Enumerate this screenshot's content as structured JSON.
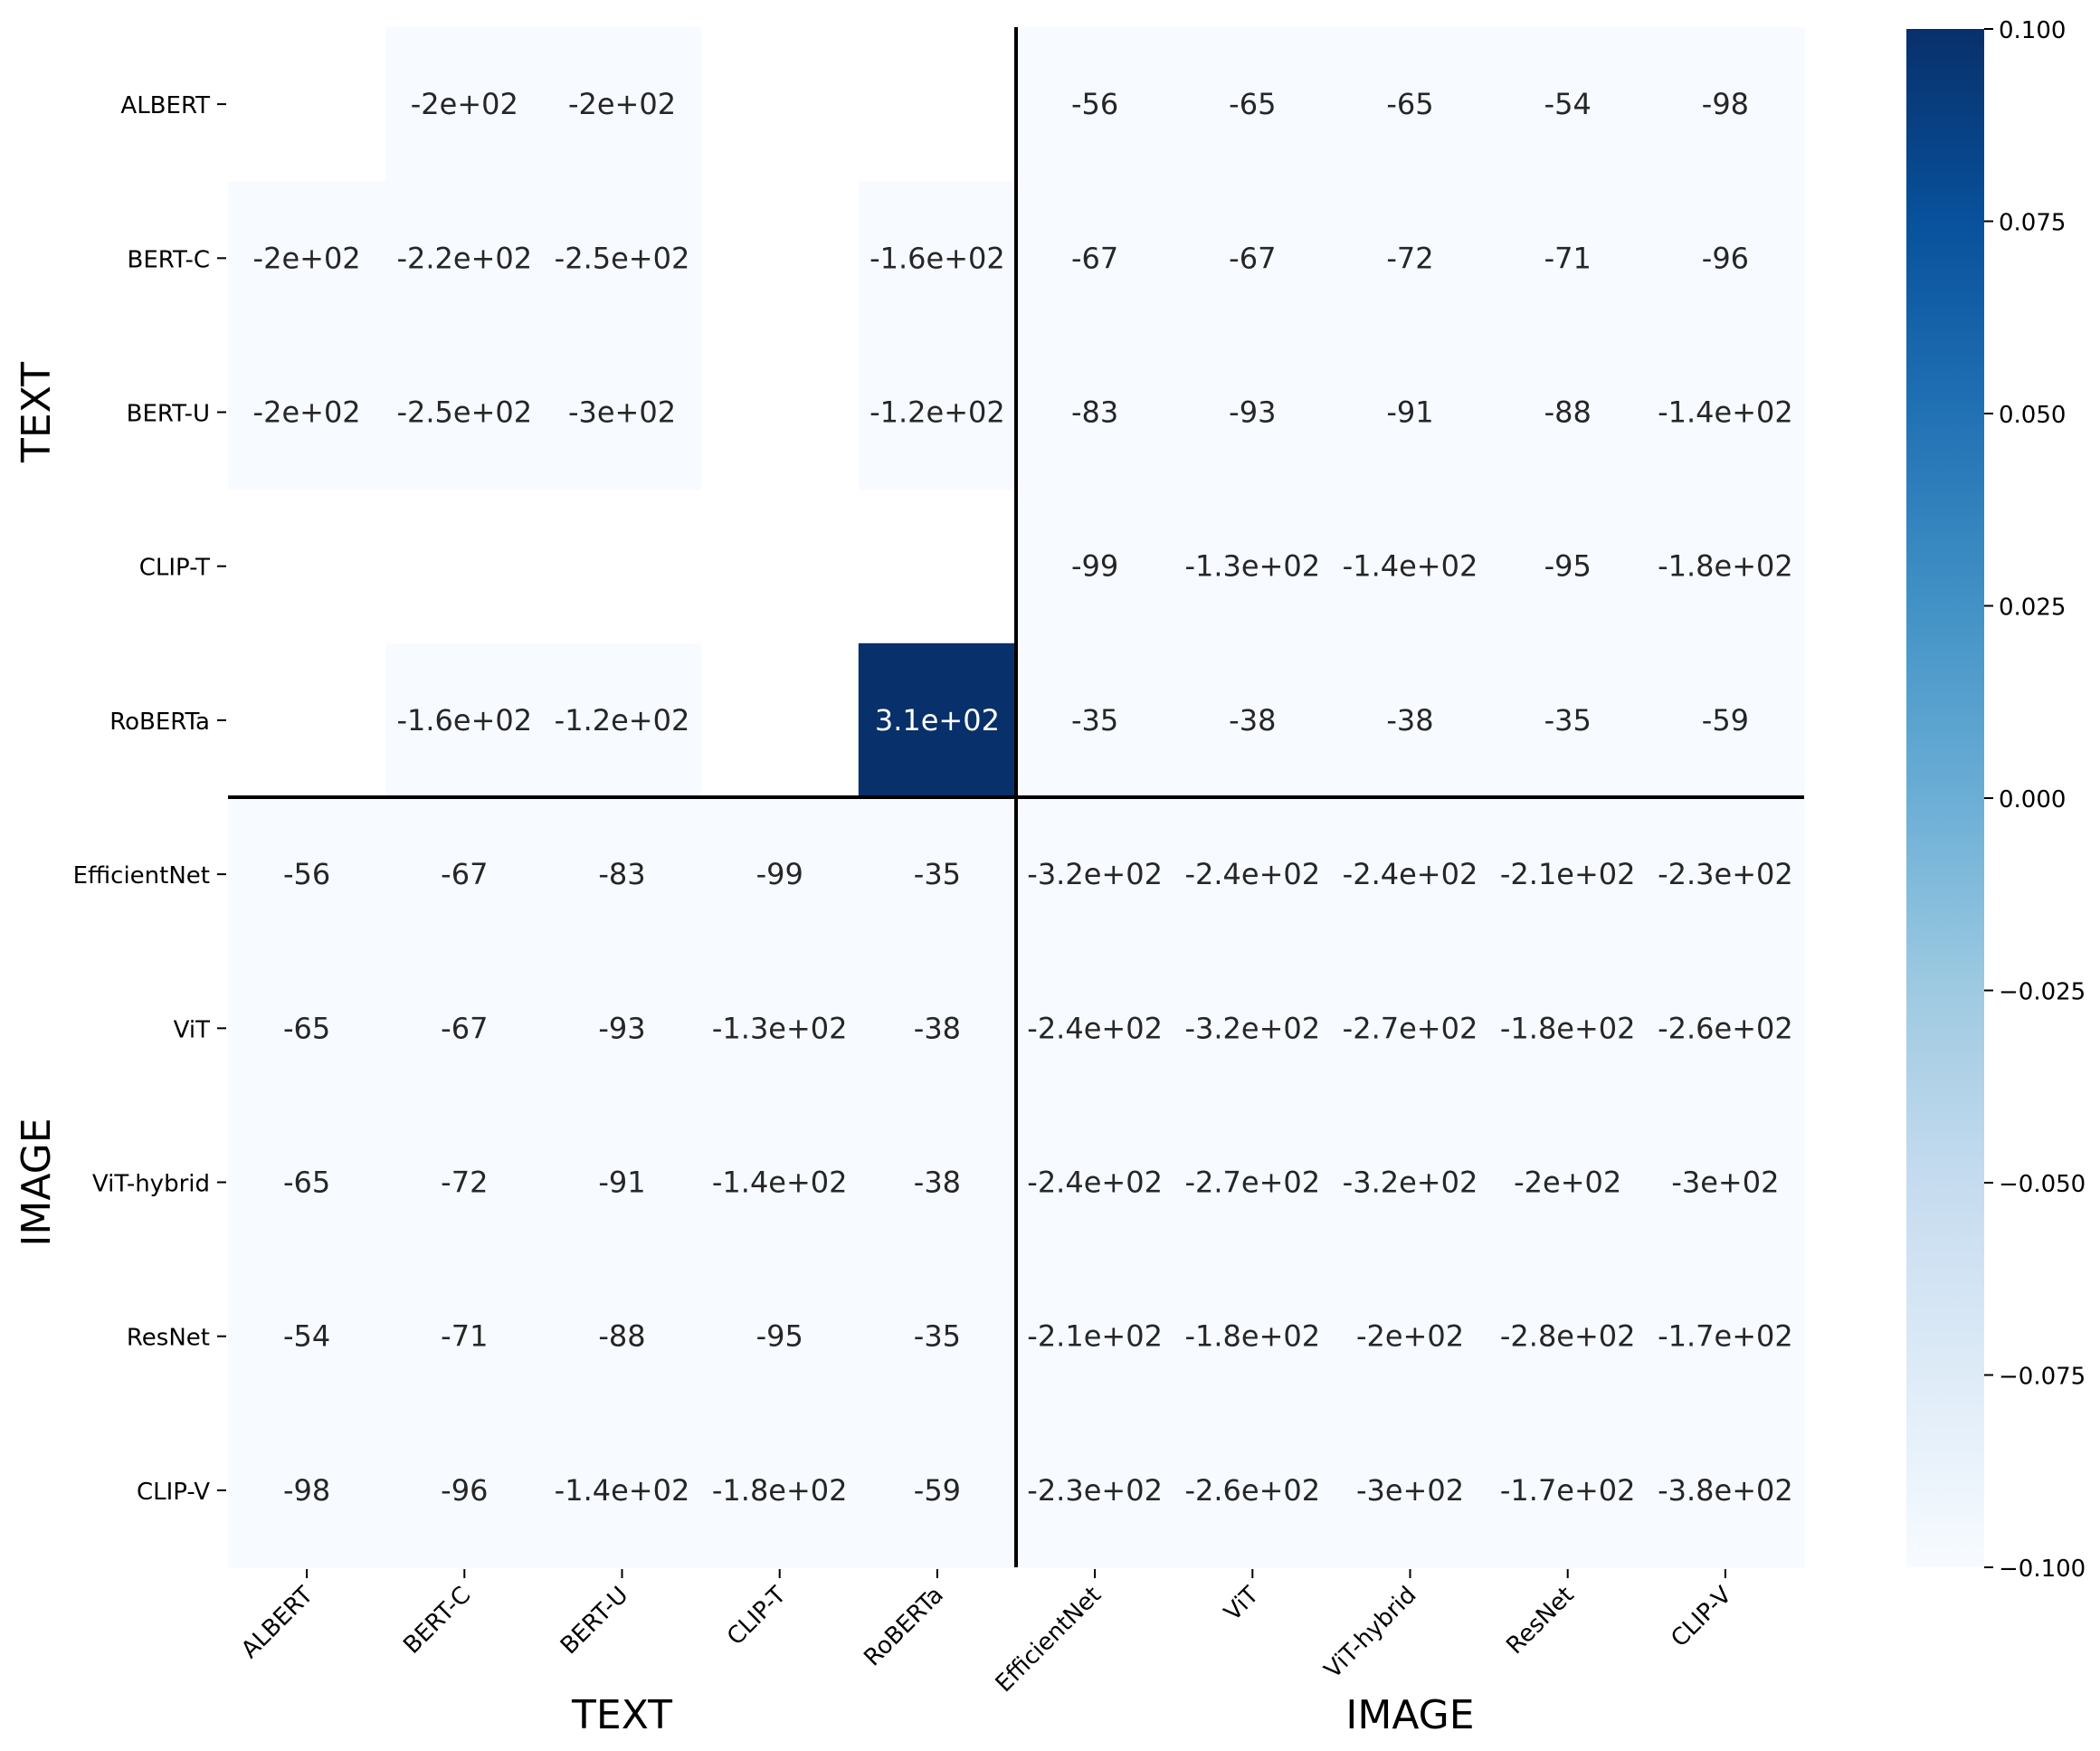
{
  "chart_data": {
    "type": "heatmap",
    "rows": [
      "ALBERT",
      "BERT-C",
      "BERT-U",
      "CLIP-T",
      "RoBERTa",
      "EfficientNet",
      "ViT",
      "ViT-hybrid",
      "ResNet",
      "CLIP-V"
    ],
    "cols": [
      "ALBERT",
      "BERT-C",
      "BERT-U",
      "CLIP-T",
      "RoBERTa",
      "EfficientNet",
      "ViT",
      "ViT-hybrid",
      "ResNet",
      "CLIP-V"
    ],
    "values": [
      [
        null,
        -200,
        -200,
        null,
        null,
        -56,
        -65,
        -65,
        -54,
        -98
      ],
      [
        -200,
        -220,
        -250,
        null,
        -160,
        -67,
        -67,
        -72,
        -71,
        -96
      ],
      [
        -200,
        -250,
        -300,
        null,
        -120,
        -83,
        -93,
        -91,
        -88,
        -140
      ],
      [
        null,
        null,
        null,
        null,
        null,
        -99,
        -130,
        -140,
        -95,
        -180
      ],
      [
        null,
        -160,
        -120,
        null,
        310,
        -35,
        -38,
        -38,
        -35,
        -59
      ],
      [
        -56,
        -67,
        -83,
        -99,
        -35,
        -320,
        -240,
        -240,
        -210,
        -230
      ],
      [
        -65,
        -67,
        -93,
        -130,
        -38,
        -240,
        -320,
        -270,
        -180,
        -260
      ],
      [
        -65,
        -72,
        -91,
        -140,
        -38,
        -240,
        -270,
        -320,
        -200,
        -300
      ],
      [
        -54,
        -71,
        -88,
        -95,
        -35,
        -210,
        -180,
        -200,
        -280,
        -170
      ],
      [
        -98,
        -96,
        -140,
        -180,
        -59,
        -230,
        -260,
        -300,
        -170,
        -380
      ]
    ],
    "annotations": [
      [
        "",
        "-2e+02",
        "-2e+02",
        "",
        "",
        "-56",
        "-65",
        "-65",
        "-54",
        "-98"
      ],
      [
        "-2e+02",
        "-2.2e+02",
        "-2.5e+02",
        "",
        "-1.6e+02",
        "-67",
        "-67",
        "-72",
        "-71",
        "-96"
      ],
      [
        "-2e+02",
        "-2.5e+02",
        "-3e+02",
        "",
        "-1.2e+02",
        "-83",
        "-93",
        "-91",
        "-88",
        "-1.4e+02"
      ],
      [
        "",
        "",
        "",
        "",
        "",
        "-99",
        "-1.3e+02",
        "-1.4e+02",
        "-95",
        "-1.8e+02"
      ],
      [
        "",
        "-1.6e+02",
        "-1.2e+02",
        "",
        "3.1e+02",
        "-35",
        "-38",
        "-38",
        "-35",
        "-59"
      ],
      [
        "-56",
        "-67",
        "-83",
        "-99",
        "-35",
        "-3.2e+02",
        "-2.4e+02",
        "-2.4e+02",
        "-2.1e+02",
        "-2.3e+02"
      ],
      [
        "-65",
        "-67",
        "-93",
        "-1.3e+02",
        "-38",
        "-2.4e+02",
        "-3.2e+02",
        "-2.7e+02",
        "-1.8e+02",
        "-2.6e+02"
      ],
      [
        "-65",
        "-72",
        "-91",
        "-1.4e+02",
        "-38",
        "-2.4e+02",
        "-2.7e+02",
        "-3.2e+02",
        "-2e+02",
        "-3e+02"
      ],
      [
        "-54",
        "-71",
        "-88",
        "-95",
        "-35",
        "-2.1e+02",
        "-1.8e+02",
        "-2e+02",
        "-2.8e+02",
        "-1.7e+02"
      ],
      [
        "-98",
        "-96",
        "-1.4e+02",
        "-1.8e+02",
        "-59",
        "-2.3e+02",
        "-2.6e+02",
        "-3e+02",
        "-1.7e+02",
        "-3.8e+02"
      ]
    ],
    "row_groups": [
      "TEXT",
      "IMAGE"
    ],
    "col_groups": [
      "TEXT",
      "IMAGE"
    ],
    "group_split": 5,
    "colorbar": {
      "vmin": -0.1,
      "vmax": 0.1,
      "ticks": [
        0.1,
        0.075,
        0.05,
        0.025,
        0.0,
        -0.025,
        -0.05,
        -0.075,
        -0.1
      ],
      "tick_labels": [
        "0.100",
        "0.075",
        "0.050",
        "0.025",
        "0.000",
        "−0.025",
        "−0.050",
        "−0.075",
        "−0.100"
      ],
      "colormap": "Blues",
      "color_low": "#f7fbff",
      "color_high": "#08306b"
    },
    "grid": false,
    "legend": "colorbar-right"
  }
}
